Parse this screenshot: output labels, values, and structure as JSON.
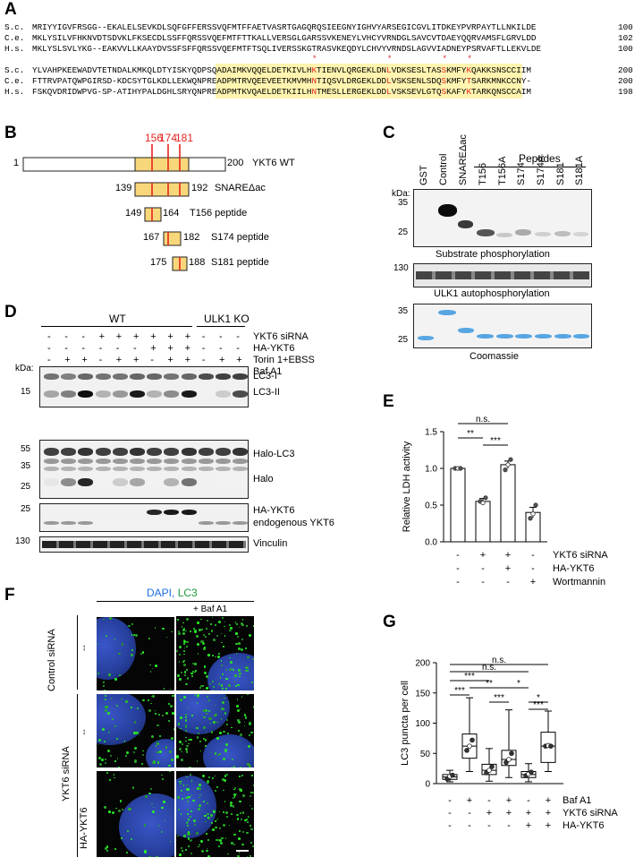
{
  "panel_labels": {
    "a": "A",
    "b": "B",
    "c": "C",
    "d": "D",
    "e": "E",
    "f": "F",
    "g": "G"
  },
  "panel_a": {
    "block1": [
      {
        "species": "S.c.",
        "seq": "MRIYYIGVFRSGG--EKALELSEVKDLSQFGFFERSSVQFMTFFAETVASRTGAGQRQSIEEGNYIGHVYARSEGICGVLITDKEYPVRPAYTLLNKILDE",
        "end": "100"
      },
      {
        "species": "C.e.",
        "seq": "MKLYSILVFHKNVDTSDVKLFKSECDLSSFFQRSSVQEFMTFTTKALLVERSGLGARSSVKENEYLVHCYVRNDGLSAVCVTDAEYQQRVAMSFLGRVLDD",
        "end": "102"
      },
      {
        "species": "H.s.",
        "seq": "MKLYSLSVLYKG--EAKVVLLKAAYDVSSFSFFQRSSVQEFMTFTSQLIVERSSKGTRASVKEQDYLCHVYVRNDSLAGVVIADNEYPSRVAFTLLEKVLDE",
        "end": "100"
      }
    ],
    "block2": [
      {
        "species": "S.c.",
        "seq": "YLVAHPKEEWADVTETNDALKMKQLDTYISKYQDPSQADAIMKVQQELDETKIVLHKTIENVLQRGEKLDNLVDKSESLTASSKMFYKQAKKSNSCCIIM",
        "end": "200"
      },
      {
        "species": "C.e.",
        "seq": "FTTRVPATQWPGIRSD-KDCSYTGLKDLLEKWQNPREADPMTRVQEEVEETKMVMHNTIQSVLDRGEKLDDLVSKSENLSDQSKMFYTSARKMNKCCNY-",
        "end": "200"
      },
      {
        "species": "H.s.",
        "seq": "FSKQVDRIDWPVG-SP-ATIHYPALDGHLSRYQNPREADPMTKVQAELDETKIILHNTMESLLERGEKLDDLVSKSEVLGTQSKAFYKTARKQNSCCAIM",
        "end": "198"
      }
    ],
    "stars": [
      "*",
      "*",
      "*",
      "*"
    ]
  },
  "panel_b": {
    "sites": [
      "156",
      "174",
      "181"
    ],
    "constructs": [
      {
        "start": "1",
        "end": "200",
        "name": "YKT6 WT"
      },
      {
        "start": "139",
        "end": "192",
        "name": "SNAREΔac"
      },
      {
        "start": "149",
        "end": "164",
        "name": "T156 peptide"
      },
      {
        "start": "167",
        "end": "182",
        "name": "S174 peptide"
      },
      {
        "start": "175",
        "end": "188",
        "name": "S181 peptide"
      }
    ]
  },
  "panel_c": {
    "peptides_header": "Peptides",
    "lanes": [
      "GST",
      "Control",
      "SNAREΔac",
      "T156",
      "T156A",
      "S174",
      "S174A",
      "S181",
      "S181A"
    ],
    "kda": "kDa:",
    "markers1": [
      "35",
      "25"
    ],
    "caption1": "Substrate phosphorylation",
    "markers2": [
      "130"
    ],
    "caption2": "ULK1 autophosphorylation",
    "markers3": [
      "35",
      "25"
    ],
    "caption3": "Coomassie"
  },
  "panel_d": {
    "group_wt": "WT",
    "group_ko": "ULK1 KO",
    "conditions": [
      {
        "label": "YKT6 siRNA",
        "signs": [
          "-",
          "-",
          "-",
          "+",
          "+",
          "+",
          "+",
          "+",
          "+",
          "-",
          "-",
          "-"
        ]
      },
      {
        "label": "HA-YKT6",
        "signs": [
          "-",
          "-",
          "-",
          "-",
          "-",
          "-",
          "+",
          "+",
          "+",
          "-",
          "-",
          "-"
        ]
      },
      {
        "label": "Torin 1+EBSS",
        "signs": [
          "-",
          "+",
          "+",
          "-",
          "+",
          "+",
          "-",
          "+",
          "+",
          "-",
          "+",
          "+"
        ]
      },
      {
        "label": "Baf A1",
        "signs": [
          "-",
          "-",
          "+",
          "-",
          "-",
          "+",
          "-",
          "-",
          "+",
          "-",
          "-",
          "+"
        ]
      }
    ],
    "kda": "kDa:",
    "blots": [
      {
        "markers": [
          "15"
        ],
        "labels": [
          "LC3-I",
          "LC3-II"
        ]
      },
      {
        "markers": [
          "55",
          "35",
          "25"
        ],
        "labels": [
          "Halo-LC3",
          "Halo"
        ]
      },
      {
        "markers": [
          "25"
        ],
        "labels": [
          "HA-YKT6",
          "endogenous YKT6"
        ]
      },
      {
        "markers": [
          "130"
        ],
        "labels": [
          "Vinculin"
        ]
      }
    ]
  },
  "panel_e": {
    "chart_data": {
      "type": "bar",
      "ylabel": "Relative LDH activity",
      "ylim": [
        0,
        1.5
      ],
      "yticks": [
        "0.0",
        "0.5",
        "1.0",
        "1.5"
      ],
      "values": [
        1.0,
        0.55,
        1.05,
        0.4
      ],
      "errors": [
        0.0,
        0.04,
        0.05,
        0.07
      ],
      "points": [
        [
          1.0,
          1.0,
          1.0
        ],
        [
          0.55,
          0.53,
          0.6
        ],
        [
          0.98,
          1.05,
          1.12
        ],
        [
          0.32,
          0.38,
          0.5
        ]
      ],
      "conditions": [
        {
          "label": "YKT6 siRNA",
          "signs": [
            "-",
            "+",
            "+",
            "-"
          ]
        },
        {
          "label": "HA-YKT6",
          "signs": [
            "-",
            "-",
            "+",
            "-"
          ]
        },
        {
          "label": "Wortmannin",
          "signs": [
            "-",
            "-",
            "-",
            "+"
          ]
        }
      ],
      "significance": [
        {
          "from": 0,
          "to": 2,
          "text": "n.s."
        },
        {
          "from": 0,
          "to": 1,
          "text": "**"
        },
        {
          "from": 1,
          "to": 2,
          "text": "***"
        }
      ]
    }
  },
  "panel_f": {
    "stain_dapi": "DAPI,",
    "stain_lc3": "LC3",
    "col2": "+ Baf A1",
    "row1_group": "Control siRNA",
    "row_dash": "--",
    "row_group": "YKT6 siRNA",
    "row3": "HA-YKT6"
  },
  "panel_g": {
    "chart_data": {
      "type": "box",
      "ylabel": "LC3 puncta per cell",
      "ylim": [
        0,
        200
      ],
      "yticks": [
        "0",
        "50",
        "100",
        "150",
        "200"
      ],
      "boxes": [
        {
          "min": 3,
          "q1": 7,
          "median": 11,
          "q3": 15,
          "max": 22,
          "points": [
            8,
            12,
            14
          ]
        },
        {
          "min": 20,
          "q1": 42,
          "median": 62,
          "q3": 82,
          "max": 142,
          "points": [
            55,
            62,
            72
          ]
        },
        {
          "min": 4,
          "q1": 15,
          "median": 22,
          "q3": 32,
          "max": 58,
          "points": [
            18,
            22,
            28
          ]
        },
        {
          "min": 10,
          "q1": 30,
          "median": 40,
          "q3": 55,
          "max": 122,
          "points": [
            35,
            40,
            50
          ]
        },
        {
          "min": 3,
          "q1": 10,
          "median": 15,
          "q3": 20,
          "max": 33,
          "points": [
            13,
            16,
            19
          ]
        },
        {
          "min": 20,
          "q1": 35,
          "median": 62,
          "q3": 85,
          "max": 120,
          "points": [
            62,
            63,
            62
          ]
        }
      ],
      "conditions": [
        {
          "label": "Baf A1",
          "signs": [
            "-",
            "+",
            "-",
            "+",
            "-",
            "+"
          ]
        },
        {
          "label": "YKT6 siRNA",
          "signs": [
            "-",
            "-",
            "+",
            "+",
            "+",
            "+"
          ]
        },
        {
          "label": "HA-YKT6",
          "signs": [
            "-",
            "-",
            "-",
            "-",
            "+",
            "+"
          ]
        }
      ],
      "significance": [
        {
          "from": 0,
          "to": 5,
          "text": "n.s."
        },
        {
          "from": 0,
          "to": 4,
          "text": "n.s."
        },
        {
          "from": 0,
          "to": 2,
          "text": "***"
        },
        {
          "from": 1,
          "to": 3,
          "text": "**"
        },
        {
          "from": 0,
          "to": 1,
          "text": "***"
        },
        {
          "from": 3,
          "to": 4,
          "text": "*"
        },
        {
          "from": 2,
          "to": 3,
          "text": "***"
        },
        {
          "from": 4,
          "to": 5,
          "text": "*"
        },
        {
          "from": 5,
          "to": 4,
          "text": "***"
        }
      ]
    }
  }
}
